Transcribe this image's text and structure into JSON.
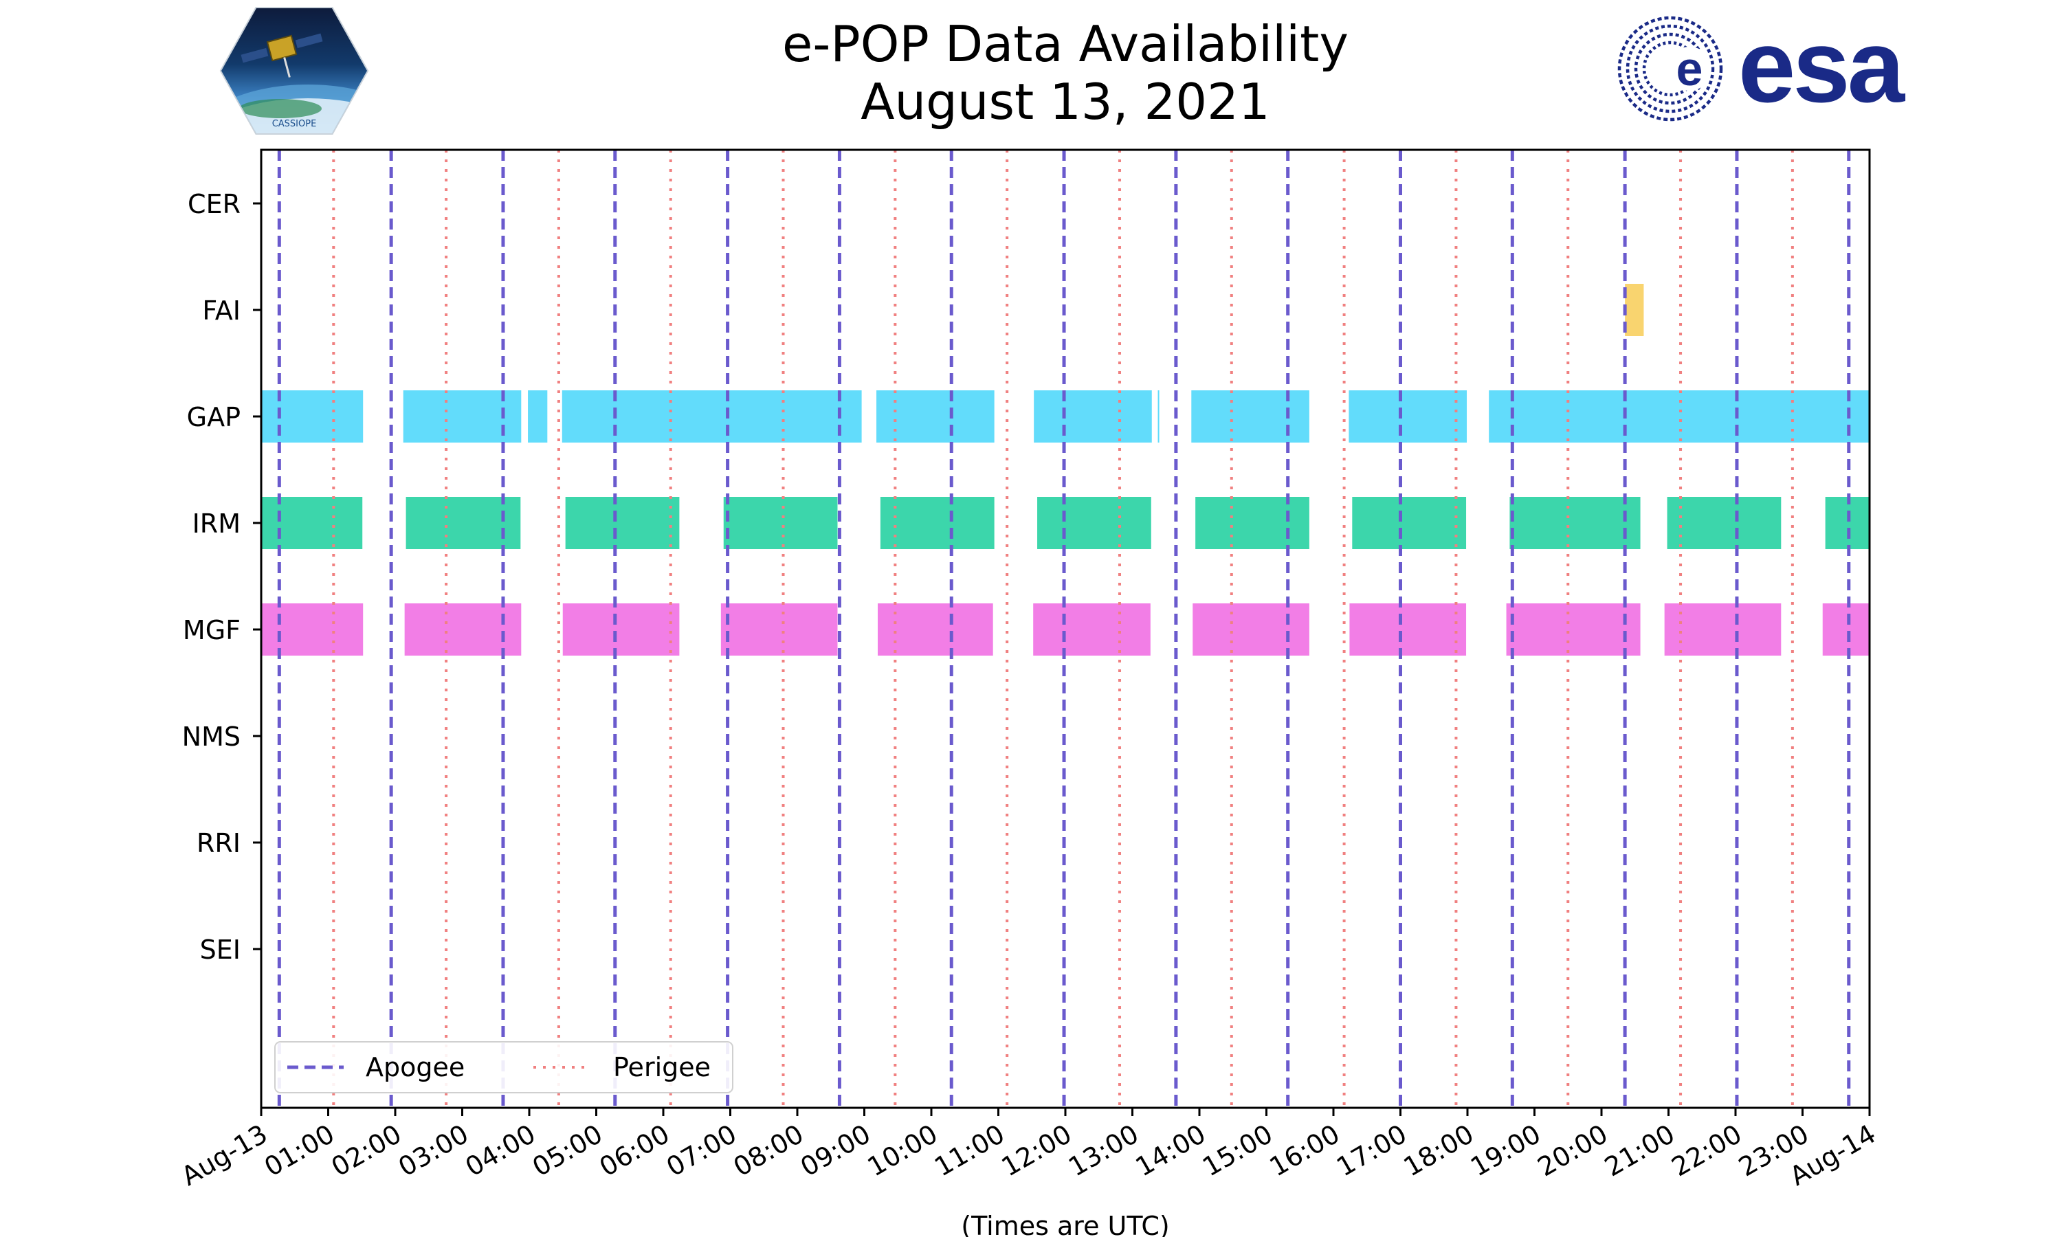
{
  "title": {
    "line1": "e-POP Data Availability",
    "line2": "August 13, 2021"
  },
  "logos": {
    "left": "CASSIOPE",
    "right": "esa"
  },
  "colors": {
    "apogee": "#6a5acd",
    "perigee": "#f08080",
    "FAI": "#f9d46f",
    "GAP": "#62dcfb",
    "IRM": "#3cd6ab",
    "MGF": "#f27ee6"
  },
  "chart_data": {
    "type": "timeline",
    "title": "e-POP Data Availability August 13, 2021",
    "xlabel": "(Times are UTC)",
    "xlim": [
      0,
      24
    ],
    "x_tick_labels": [
      "Aug-13",
      "01:00",
      "02:00",
      "03:00",
      "04:00",
      "05:00",
      "06:00",
      "07:00",
      "08:00",
      "09:00",
      "10:00",
      "11:00",
      "12:00",
      "13:00",
      "14:00",
      "15:00",
      "16:00",
      "17:00",
      "18:00",
      "19:00",
      "20:00",
      "21:00",
      "22:00",
      "23:00",
      "Aug-14"
    ],
    "instruments": [
      "CER",
      "FAI",
      "GAP",
      "IRM",
      "MGF",
      "NMS",
      "RRI",
      "SEI"
    ],
    "apogee_hours": [
      0.27,
      1.94,
      3.61,
      5.28,
      6.96,
      8.63,
      10.3,
      11.98,
      13.65,
      15.32,
      17.0,
      18.67,
      20.35,
      22.02,
      23.69
    ],
    "perigee_hours": [
      1.08,
      2.76,
      4.44,
      6.11,
      7.79,
      9.46,
      11.13,
      12.81,
      14.48,
      16.16,
      17.83,
      19.5,
      21.18,
      22.85
    ],
    "segments": {
      "CER": [],
      "FAI": [
        [
          20.35,
          20.63
        ]
      ],
      "GAP": [
        [
          0.0,
          1.52
        ],
        [
          2.12,
          3.88
        ],
        [
          3.98,
          4.27
        ],
        [
          4.49,
          8.96
        ],
        [
          9.18,
          10.94
        ],
        [
          11.53,
          13.29
        ],
        [
          13.38,
          13.4
        ],
        [
          13.88,
          15.64
        ],
        [
          16.23,
          17.99
        ],
        [
          18.32,
          24.0
        ]
      ],
      "IRM": [
        [
          0.0,
          1.51
        ],
        [
          2.16,
          3.87
        ],
        [
          4.54,
          6.24
        ],
        [
          6.9,
          8.6
        ],
        [
          9.24,
          10.94
        ],
        [
          11.58,
          13.28
        ],
        [
          13.94,
          15.64
        ],
        [
          16.28,
          17.98
        ],
        [
          18.63,
          20.58
        ],
        [
          20.98,
          22.68
        ],
        [
          23.34,
          24.0
        ]
      ],
      "MGF": [
        [
          0.0,
          1.52
        ],
        [
          2.14,
          3.88
        ],
        [
          4.5,
          6.24
        ],
        [
          6.86,
          8.6
        ],
        [
          9.2,
          10.92
        ],
        [
          11.52,
          13.27
        ],
        [
          13.9,
          15.64
        ],
        [
          16.24,
          17.98
        ],
        [
          18.58,
          20.58
        ],
        [
          20.94,
          22.68
        ],
        [
          23.3,
          24.0
        ]
      ],
      "NMS": [],
      "RRI": [],
      "SEI": []
    },
    "legend": {
      "position": "lower-left",
      "entries": [
        "Apogee",
        "Perigee"
      ]
    }
  }
}
